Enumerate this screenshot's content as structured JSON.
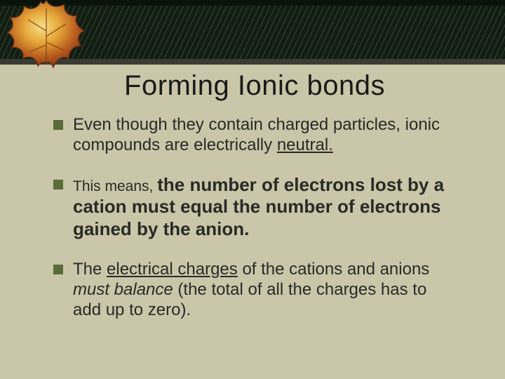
{
  "slide": {
    "title": "Forming Ionic bonds",
    "bullets": [
      {
        "segments": [
          {
            "text": "Even though they contain charged particles, ionic compounds are electrically "
          },
          {
            "text": "neutral.",
            "underline": true
          }
        ]
      },
      {
        "segments": [
          {
            "text": "This means, ",
            "cls": "l1-lead"
          },
          {
            "text": "the number of electrons lost by a cation must equal the number of electrons gained by the anion.",
            "cls": "l1-bold"
          }
        ]
      },
      {
        "segments": [
          {
            "text": "The "
          },
          {
            "text": "electrical charges",
            "underline": true
          },
          {
            "text": " of the cations and anions "
          },
          {
            "text": "must balance",
            "italic": true
          },
          {
            "text": " (the total of all the charges has to add up to zero)."
          }
        ]
      }
    ]
  },
  "style": {
    "background_color": "#c9c6a9",
    "band_color": "#11200f",
    "bullet_color": "#5b6b3a",
    "title_color": "#1a1a18",
    "text_color": "#2a2a26",
    "title_fontsize": 40,
    "body_fontsize": 24
  },
  "decoration": {
    "leaf_icon": "maple-leaf"
  }
}
